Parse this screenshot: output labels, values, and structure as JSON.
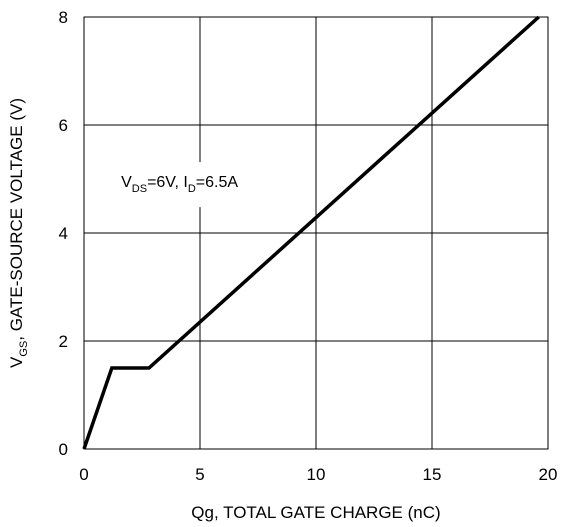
{
  "chart_data": {
    "type": "line",
    "title": "",
    "xlabel": "Qg, TOTAL GATE CHARGE (nC)",
    "ylabel": {
      "main": "V",
      "sub": "GS",
      "rest": ", GATE-SOURCE VOLTAGE (V)"
    },
    "xlim": [
      0,
      20
    ],
    "ylim": [
      0,
      8
    ],
    "xticks": [
      0,
      5,
      10,
      15,
      20
    ],
    "yticks": [
      0,
      2,
      4,
      6,
      8
    ],
    "grid": true,
    "series": [
      {
        "x": [
          0,
          1.2,
          2.8,
          19.6
        ],
        "y": [
          0,
          1.5,
          1.5,
          8.0
        ]
      }
    ],
    "annotation": {
      "v_main": "V",
      "v_sub": "DS",
      "v_rest": "=6V, I",
      "i_sub": "D",
      "i_rest": "=6.5A",
      "x": 1.6,
      "y": 4.85
    },
    "colors": {
      "line": "#000000",
      "grid": "#000000",
      "annotation_bg": "#ffffff"
    }
  }
}
